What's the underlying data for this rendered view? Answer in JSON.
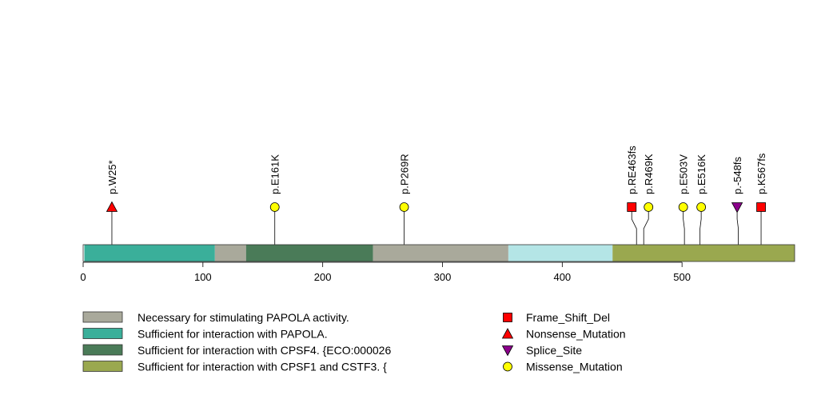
{
  "chart_data": {
    "type": "lollipop",
    "protein_length": 594,
    "x_axis": {
      "range": [
        0,
        594
      ],
      "ticks": [
        0,
        100,
        200,
        300,
        400,
        500
      ],
      "tick_labels": [
        "0",
        "100",
        "200",
        "300",
        "400",
        "500"
      ]
    },
    "domains": [
      {
        "start": 1,
        "end": 110,
        "color": "#3aaf9a",
        "legend_index": 1
      },
      {
        "start": 110,
        "end": 136,
        "color": "#a9a99b",
        "legend_index": 0
      },
      {
        "start": 136,
        "end": 242,
        "color": "#4a7b58",
        "legend_index": 2
      },
      {
        "start": 242,
        "end": 355,
        "color": "#a9a99b",
        "legend_index": 0
      },
      {
        "start": 355,
        "end": 442,
        "color": "#b4e5e6",
        "legend_index": null
      },
      {
        "start": 442,
        "end": 594,
        "color": "#9aa84f",
        "legend_index": 3
      }
    ],
    "mutations": [
      {
        "label": "p.W25*",
        "position": 24,
        "head_position": 24,
        "type": "Nonsense_Mutation"
      },
      {
        "label": "p.E161K",
        "position": 160,
        "head_position": 160,
        "type": "Missense_Mutation"
      },
      {
        "label": "p.P269R",
        "position": 268,
        "head_position": 268,
        "type": "Missense_Mutation"
      },
      {
        "label": "p.RE463fs",
        "position": 462,
        "head_position": 458,
        "type": "Frame_Shift_Del"
      },
      {
        "label": "p.R469K",
        "position": 468,
        "head_position": 472,
        "type": "Missense_Mutation"
      },
      {
        "label": "p.E503V",
        "position": 502,
        "head_position": 501,
        "type": "Missense_Mutation"
      },
      {
        "label": "p.E516K",
        "position": 515,
        "head_position": 516,
        "type": "Missense_Mutation"
      },
      {
        "label": "p.-548fs",
        "position": 547,
        "head_position": 546,
        "type": "Splice_Site"
      },
      {
        "label": "p.K567fs",
        "position": 566,
        "head_position": 566,
        "type": "Frame_Shift_Del"
      }
    ],
    "domain_legend": [
      {
        "label": "Necessary for stimulating PAPOLA activity.",
        "color": "#a9a99b"
      },
      {
        "label": "Sufficient for interaction with PAPOLA.",
        "color": "#3aaf9a"
      },
      {
        "label": "Sufficient for interaction with CPSF4. {ECO:000026",
        "color": "#4a7b58"
      },
      {
        "label": "Sufficient for interaction with CPSF1 and CSTF3. {",
        "color": "#9aa84f"
      }
    ],
    "mutation_legend": [
      {
        "label": "Frame_Shift_Del",
        "shape": "square",
        "color": "#ff0000"
      },
      {
        "label": "Nonsense_Mutation",
        "shape": "triangle-up",
        "color": "#ff0000"
      },
      {
        "label": "Splice_Site",
        "shape": "triangle-down",
        "color": "#8b008b"
      },
      {
        "label": "Missense_Mutation",
        "shape": "circle",
        "color": "#ffff00"
      }
    ]
  }
}
